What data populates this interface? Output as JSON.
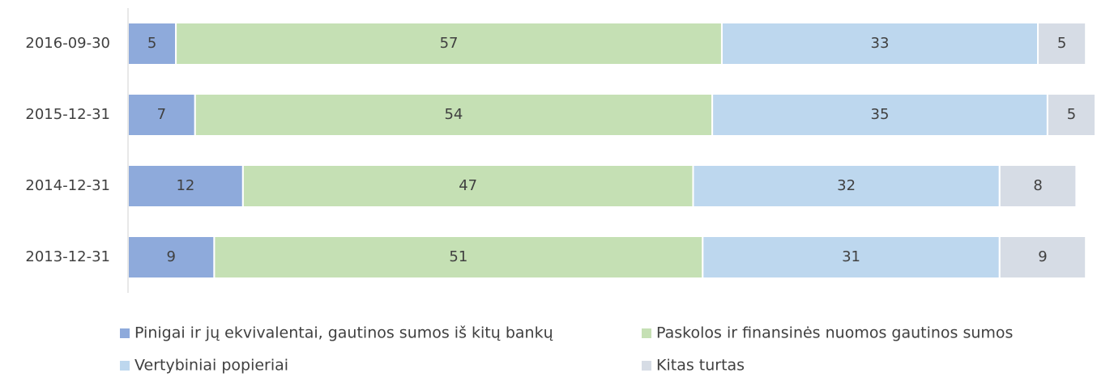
{
  "chart_data": {
    "type": "stacked_bar_horizontal",
    "categories": [
      "2016-09-30",
      "2015-12-31",
      "2014-12-31",
      "2013-12-31"
    ],
    "series": [
      {
        "name": "Pinigai ir jų ekvivalentai, gautinos sumos iš kitų bankų",
        "color": "#8eaadb",
        "values": [
          5,
          7,
          12,
          9
        ]
      },
      {
        "name": "Paskolos ir finansinės nuomos gautinos sumos",
        "color": "#c5e0b4",
        "values": [
          57,
          54,
          47,
          51
        ]
      },
      {
        "name": "Vertybiniai popieriai",
        "color": "#bdd7ee",
        "values": [
          33,
          35,
          32,
          31
        ]
      },
      {
        "name": "Kitas turtas",
        "color": "#d6dce5",
        "values": [
          5,
          5,
          8,
          9
        ]
      }
    ],
    "xlim": [
      0,
      101
    ],
    "legend": "bottom"
  }
}
